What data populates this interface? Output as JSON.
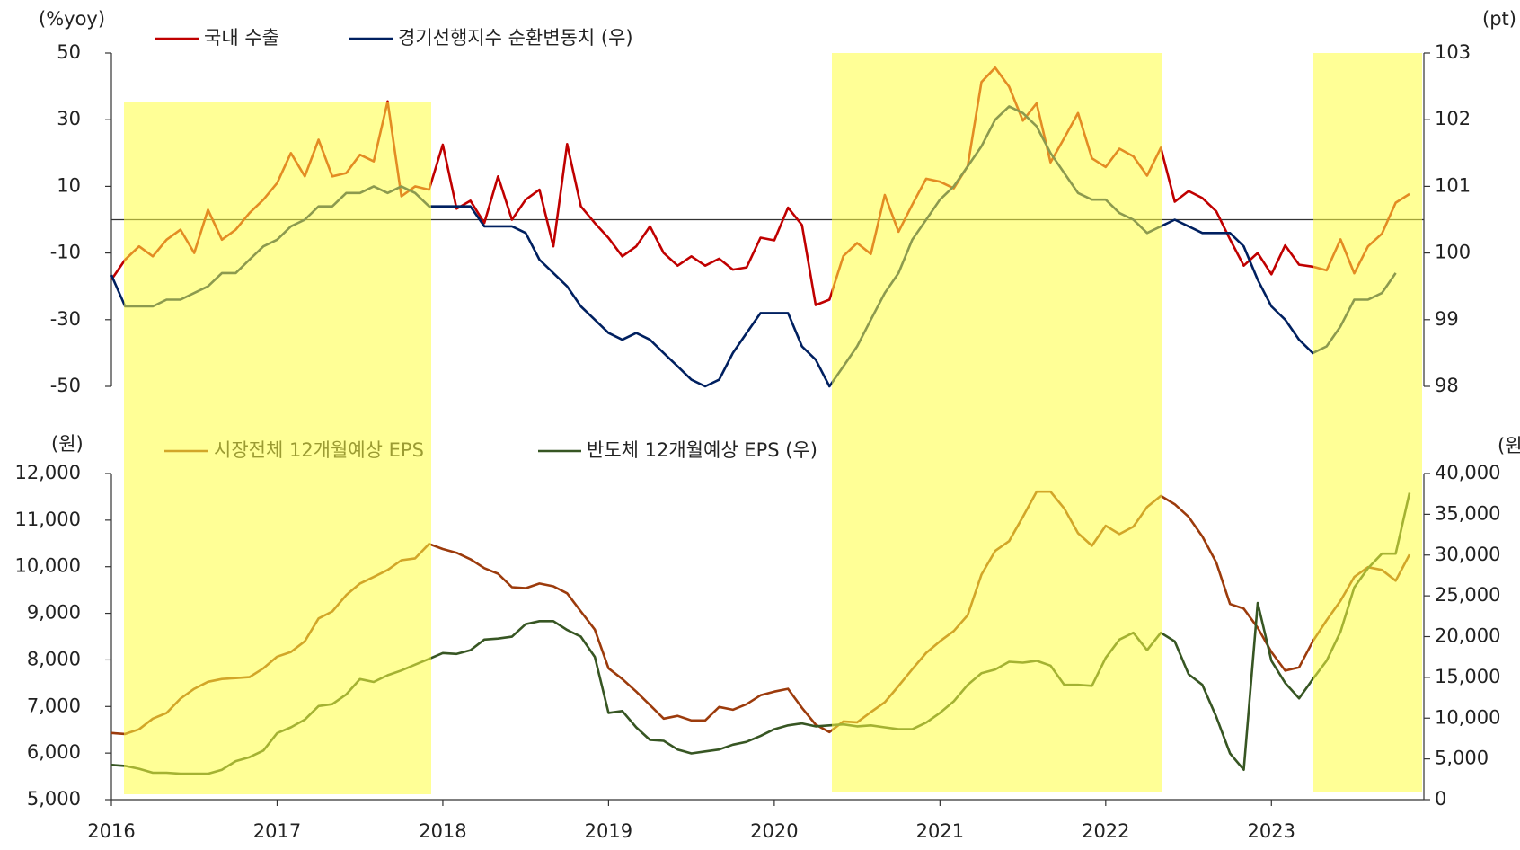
{
  "chart_data": [
    {
      "type": "line",
      "y_label": "(%yoy)",
      "y2_label": "(pt)",
      "x": [
        2016,
        2016.083,
        2016.167,
        2016.25,
        2016.333,
        2016.417,
        2016.5,
        2016.583,
        2016.667,
        2016.75,
        2016.833,
        2016.917,
        2017,
        2017.083,
        2017.167,
        2017.25,
        2017.333,
        2017.417,
        2017.5,
        2017.583,
        2017.667,
        2017.75,
        2017.833,
        2017.917,
        2018,
        2018.083,
        2018.167,
        2018.25,
        2018.333,
        2018.417,
        2018.5,
        2018.583,
        2018.667,
        2018.75,
        2018.833,
        2018.917,
        2019,
        2019.083,
        2019.167,
        2019.25,
        2019.333,
        2019.417,
        2019.5,
        2019.583,
        2019.667,
        2019.75,
        2019.833,
        2019.917,
        2020,
        2020.083,
        2020.167,
        2020.25,
        2020.333,
        2020.417,
        2020.5,
        2020.583,
        2020.667,
        2020.75,
        2020.833,
        2020.917,
        2021,
        2021.083,
        2021.167,
        2021.25,
        2021.333,
        2021.417,
        2021.5,
        2021.583,
        2021.667,
        2021.75,
        2021.833,
        2021.917,
        2022,
        2022.083,
        2022.167,
        2022.25,
        2022.333,
        2022.417,
        2022.5,
        2022.583,
        2022.667,
        2022.75,
        2022.833,
        2022.917,
        2023,
        2023.083,
        2023.167,
        2023.25,
        2023.333,
        2023.417,
        2023.5,
        2023.583,
        2023.667,
        2023.75,
        2023.833
      ],
      "xlim": [
        2016,
        2023.92
      ],
      "ylim": [
        -50,
        50
      ],
      "yticks": [
        -50,
        -30,
        -10,
        10,
        30,
        50
      ],
      "y2lim": [
        98,
        103
      ],
      "y2ticks": [
        98,
        99,
        100,
        101,
        102,
        103
      ],
      "series": [
        {
          "name": "국내 수출",
          "color": "#c00000",
          "values": [
            -18,
            -12,
            -8,
            -11,
            -6,
            -3,
            -10,
            3,
            -6,
            -3,
            2,
            6,
            11,
            20,
            13,
            24,
            13,
            14,
            19.5,
            17.5,
            35.5,
            7,
            10,
            9,
            22.5,
            3.3,
            5.7,
            -1,
            13,
            0,
            6,
            9,
            -8,
            22.7,
            4,
            -1,
            -5.5,
            -11,
            -8,
            -2,
            -10,
            -13.8,
            -11,
            -13.8,
            -11.7,
            -15,
            -14.3,
            -5.4,
            -6.2,
            3.6,
            -1.6,
            -25.6,
            -24,
            -10.9,
            -7,
            -10.3,
            7.4,
            -3.6,
            4.5,
            12.3,
            11.4,
            9.4,
            16.1,
            41.3,
            45.6,
            39.9,
            29.7,
            34.9,
            17.2,
            24.5,
            32,
            18.4,
            15.8,
            21.3,
            19,
            13.2,
            21.6,
            5.4,
            8.6,
            6.5,
            2.5,
            -5.9,
            -13.8,
            -10,
            -16.4,
            -7.7,
            -13.5,
            -14.1,
            -15.2,
            -5.9,
            -16.1,
            -8,
            -4.2,
            5.1,
            7.7
          ]
        },
        {
          "name": "경기선행지수 순환변동치 (우)",
          "color": "#002060",
          "axis": "y2",
          "values": [
            99.67,
            99.2,
            99.2,
            99.2,
            99.3,
            99.3,
            99.4,
            99.5,
            99.7,
            99.7,
            99.9,
            100.1,
            100.2,
            100.4,
            100.5,
            100.7,
            100.7,
            100.9,
            100.9,
            101.0,
            100.9,
            101.0,
            100.9,
            100.7,
            100.7,
            100.7,
            100.7,
            100.4,
            100.4,
            100.4,
            100.3,
            99.9,
            99.7,
            99.5,
            99.2,
            99.0,
            98.8,
            98.7,
            98.8,
            98.7,
            98.5,
            98.3,
            98.1,
            98.0,
            98.1,
            98.5,
            98.8,
            99.1,
            99.1,
            99.1,
            98.6,
            98.4,
            98.0,
            98.3,
            98.6,
            99.0,
            99.4,
            99.7,
            100.2,
            100.5,
            100.8,
            101.0,
            101.3,
            101.6,
            102.0,
            102.2,
            102.1,
            101.9,
            101.5,
            101.2,
            100.9,
            100.8,
            100.8,
            100.6,
            100.5,
            100.3,
            100.4,
            100.5,
            100.4,
            100.3,
            100.3,
            100.3,
            100.1,
            99.6,
            99.2,
            99.0,
            98.7,
            98.5,
            98.6,
            98.9,
            99.3,
            99.3,
            99.4,
            99.7,
            null
          ]
        }
      ]
    },
    {
      "type": "line",
      "y_label": "(원)",
      "y2_label": "(원)",
      "x": [
        2016,
        2016.083,
        2016.167,
        2016.25,
        2016.333,
        2016.417,
        2016.5,
        2016.583,
        2016.667,
        2016.75,
        2016.833,
        2016.917,
        2017,
        2017.083,
        2017.167,
        2017.25,
        2017.333,
        2017.417,
        2017.5,
        2017.583,
        2017.667,
        2017.75,
        2017.833,
        2017.917,
        2018,
        2018.083,
        2018.167,
        2018.25,
        2018.333,
        2018.417,
        2018.5,
        2018.583,
        2018.667,
        2018.75,
        2018.833,
        2018.917,
        2019,
        2019.083,
        2019.167,
        2019.25,
        2019.333,
        2019.417,
        2019.5,
        2019.583,
        2019.667,
        2019.75,
        2019.833,
        2019.917,
        2020,
        2020.083,
        2020.167,
        2020.25,
        2020.333,
        2020.417,
        2020.5,
        2020.583,
        2020.667,
        2020.75,
        2020.833,
        2020.917,
        2021,
        2021.083,
        2021.167,
        2021.25,
        2021.333,
        2021.417,
        2021.5,
        2021.583,
        2021.667,
        2021.75,
        2021.833,
        2021.917,
        2022,
        2022.083,
        2022.167,
        2022.25,
        2022.333,
        2022.417,
        2022.5,
        2022.583,
        2022.667,
        2022.75,
        2022.833,
        2022.917,
        2023,
        2023.083,
        2023.167,
        2023.25,
        2023.333,
        2023.417,
        2023.5,
        2023.583,
        2023.667,
        2023.75,
        2023.833
      ],
      "xlim": [
        2016,
        2023.92
      ],
      "xticks": [
        2016,
        2017,
        2018,
        2019,
        2020,
        2021,
        2022,
        2023
      ],
      "ylim": [
        5000,
        12000
      ],
      "yticks": [
        {
          "value": 5000,
          "label": "5,000"
        },
        {
          "value": 6000,
          "label": "6,000"
        },
        {
          "value": 7000,
          "label": "7,000"
        },
        {
          "value": 8000,
          "label": "8,000"
        },
        {
          "value": 9000,
          "label": "9,000"
        },
        {
          "value": 10000,
          "label": "10,000"
        },
        {
          "value": 11000,
          "label": "11,000"
        },
        {
          "value": 12000,
          "label": "12,000"
        }
      ],
      "y2lim": [
        0,
        40000
      ],
      "y2ticks": [
        0,
        {
          "value": 5000,
          "label": "5,000"
        },
        {
          "value": 10000,
          "label": "10,000"
        },
        {
          "value": 15000,
          "label": "15,000"
        },
        {
          "value": 20000,
          "label": "20,000"
        },
        {
          "value": 25000,
          "label": "25,000"
        },
        {
          "value": 30000,
          "label": "30,000"
        },
        {
          "value": 35000,
          "label": "35,000"
        },
        {
          "value": 40000,
          "label": "40,000"
        }
      ],
      "series": [
        {
          "name": "시장전체 12개월예상 EPS",
          "color": "#9c3b0c",
          "values": [
            6430,
            6410,
            6510,
            6740,
            6860,
            7170,
            7380,
            7530,
            7590,
            7610,
            7630,
            7820,
            8070,
            8170,
            8400,
            8890,
            9040,
            9390,
            9640,
            9780,
            9930,
            10140,
            10180,
            10490,
            10380,
            10300,
            10160,
            9970,
            9850,
            9560,
            9540,
            9640,
            9580,
            9430,
            9040,
            8650,
            7820,
            7590,
            7320,
            7030,
            6740,
            6800,
            6700,
            6700,
            6990,
            6930,
            7050,
            7240,
            7320,
            7380,
            6970,
            6610,
            6450,
            6680,
            6660,
            6880,
            7090,
            7440,
            7800,
            8150,
            8400,
            8620,
            8960,
            9830,
            10340,
            10550,
            11070,
            11610,
            11610,
            11250,
            10720,
            10450,
            10880,
            10700,
            10860,
            11280,
            11520,
            11340,
            11070,
            10650,
            10090,
            9200,
            9100,
            8690,
            8170,
            7770,
            7840,
            8400,
            8850,
            9270,
            9780,
            9990,
            9930,
            9700,
            10260
          ]
        },
        {
          "name": "반도체 12개월예상 EPS (우)",
          "color": "#375623",
          "axis": "y2",
          "values": [
            4260,
            4140,
            3790,
            3310,
            3310,
            3190,
            3190,
            3190,
            3670,
            4730,
            5210,
            6030,
            8160,
            8870,
            9820,
            11480,
            11710,
            12900,
            14790,
            14430,
            15260,
            15850,
            16560,
            17270,
            17980,
            17870,
            18340,
            19640,
            19760,
            19990,
            21530,
            21890,
            21890,
            20820,
            19990,
            17510,
            10650,
            10880,
            8870,
            7330,
            7220,
            6150,
            5680,
            5920,
            6150,
            6740,
            7100,
            7810,
            8640,
            9110,
            9350,
            8990,
            9110,
            9230,
            8990,
            9110,
            8870,
            8640,
            8640,
            9460,
            10650,
            12070,
            14080,
            15500,
            15970,
            16920,
            16800,
            17040,
            16440,
            14080,
            14080,
            13960,
            17390,
            19640,
            20470,
            18340,
            20470,
            19400,
            15380,
            14080,
            10170,
            5680,
            3670,
            24130,
            17040,
            14310,
            12420,
            14790,
            17040,
            20590,
            26030,
            28390,
            30170,
            30170,
            37620
          ]
        }
      ]
    }
  ]
}
